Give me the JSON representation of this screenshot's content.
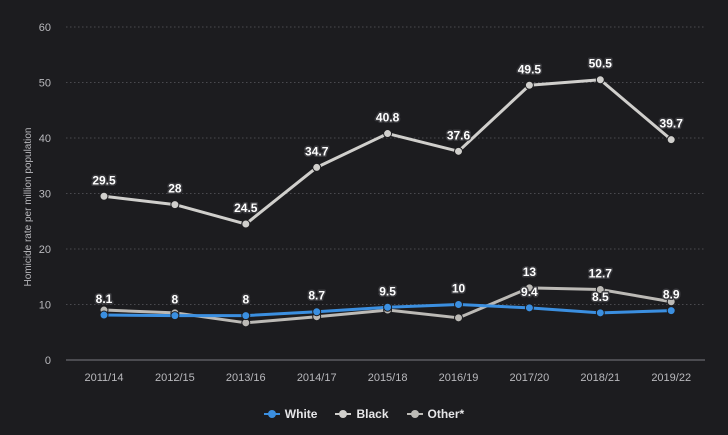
{
  "chart_data": {
    "type": "line",
    "title": "",
    "xlabel": "",
    "ylabel": "Homicide rate per million population",
    "categories": [
      "2011/14",
      "2012/15",
      "2013/16",
      "2014/17",
      "2015/18",
      "2016/19",
      "2017/20",
      "2018/21",
      "2019/22"
    ],
    "ylim": [
      0,
      60
    ],
    "yticks": [
      0,
      10,
      20,
      30,
      40,
      50,
      60
    ],
    "grid": true,
    "legend_position": "bottom",
    "series": [
      {
        "name": "White",
        "color": "#3b8fe0",
        "values": [
          8.1,
          8,
          8,
          8.7,
          9.5,
          10,
          9.4,
          8.5,
          8.9
        ],
        "labels": [
          "8.1",
          "8",
          "8",
          "8.7",
          "9.5",
          "10",
          "9.4",
          "8.5",
          "8.9"
        ]
      },
      {
        "name": "Black",
        "color": "#d0cfcc",
        "values": [
          29.5,
          28,
          24.5,
          34.7,
          40.8,
          37.6,
          49.5,
          50.5,
          39.7
        ],
        "labels": [
          "29.5",
          "28",
          "24.5",
          "34.7",
          "40.8",
          "37.6",
          "49.5",
          "50.5",
          "39.7"
        ]
      },
      {
        "name": "Other*",
        "color": "#bcbab6",
        "values": [
          9,
          8.5,
          6.7,
          7.8,
          9,
          7.6,
          13,
          12.7,
          10.5
        ],
        "labels": [
          "",
          "",
          "",
          "",
          "",
          "",
          "13",
          "12.7",
          ""
        ]
      }
    ]
  }
}
